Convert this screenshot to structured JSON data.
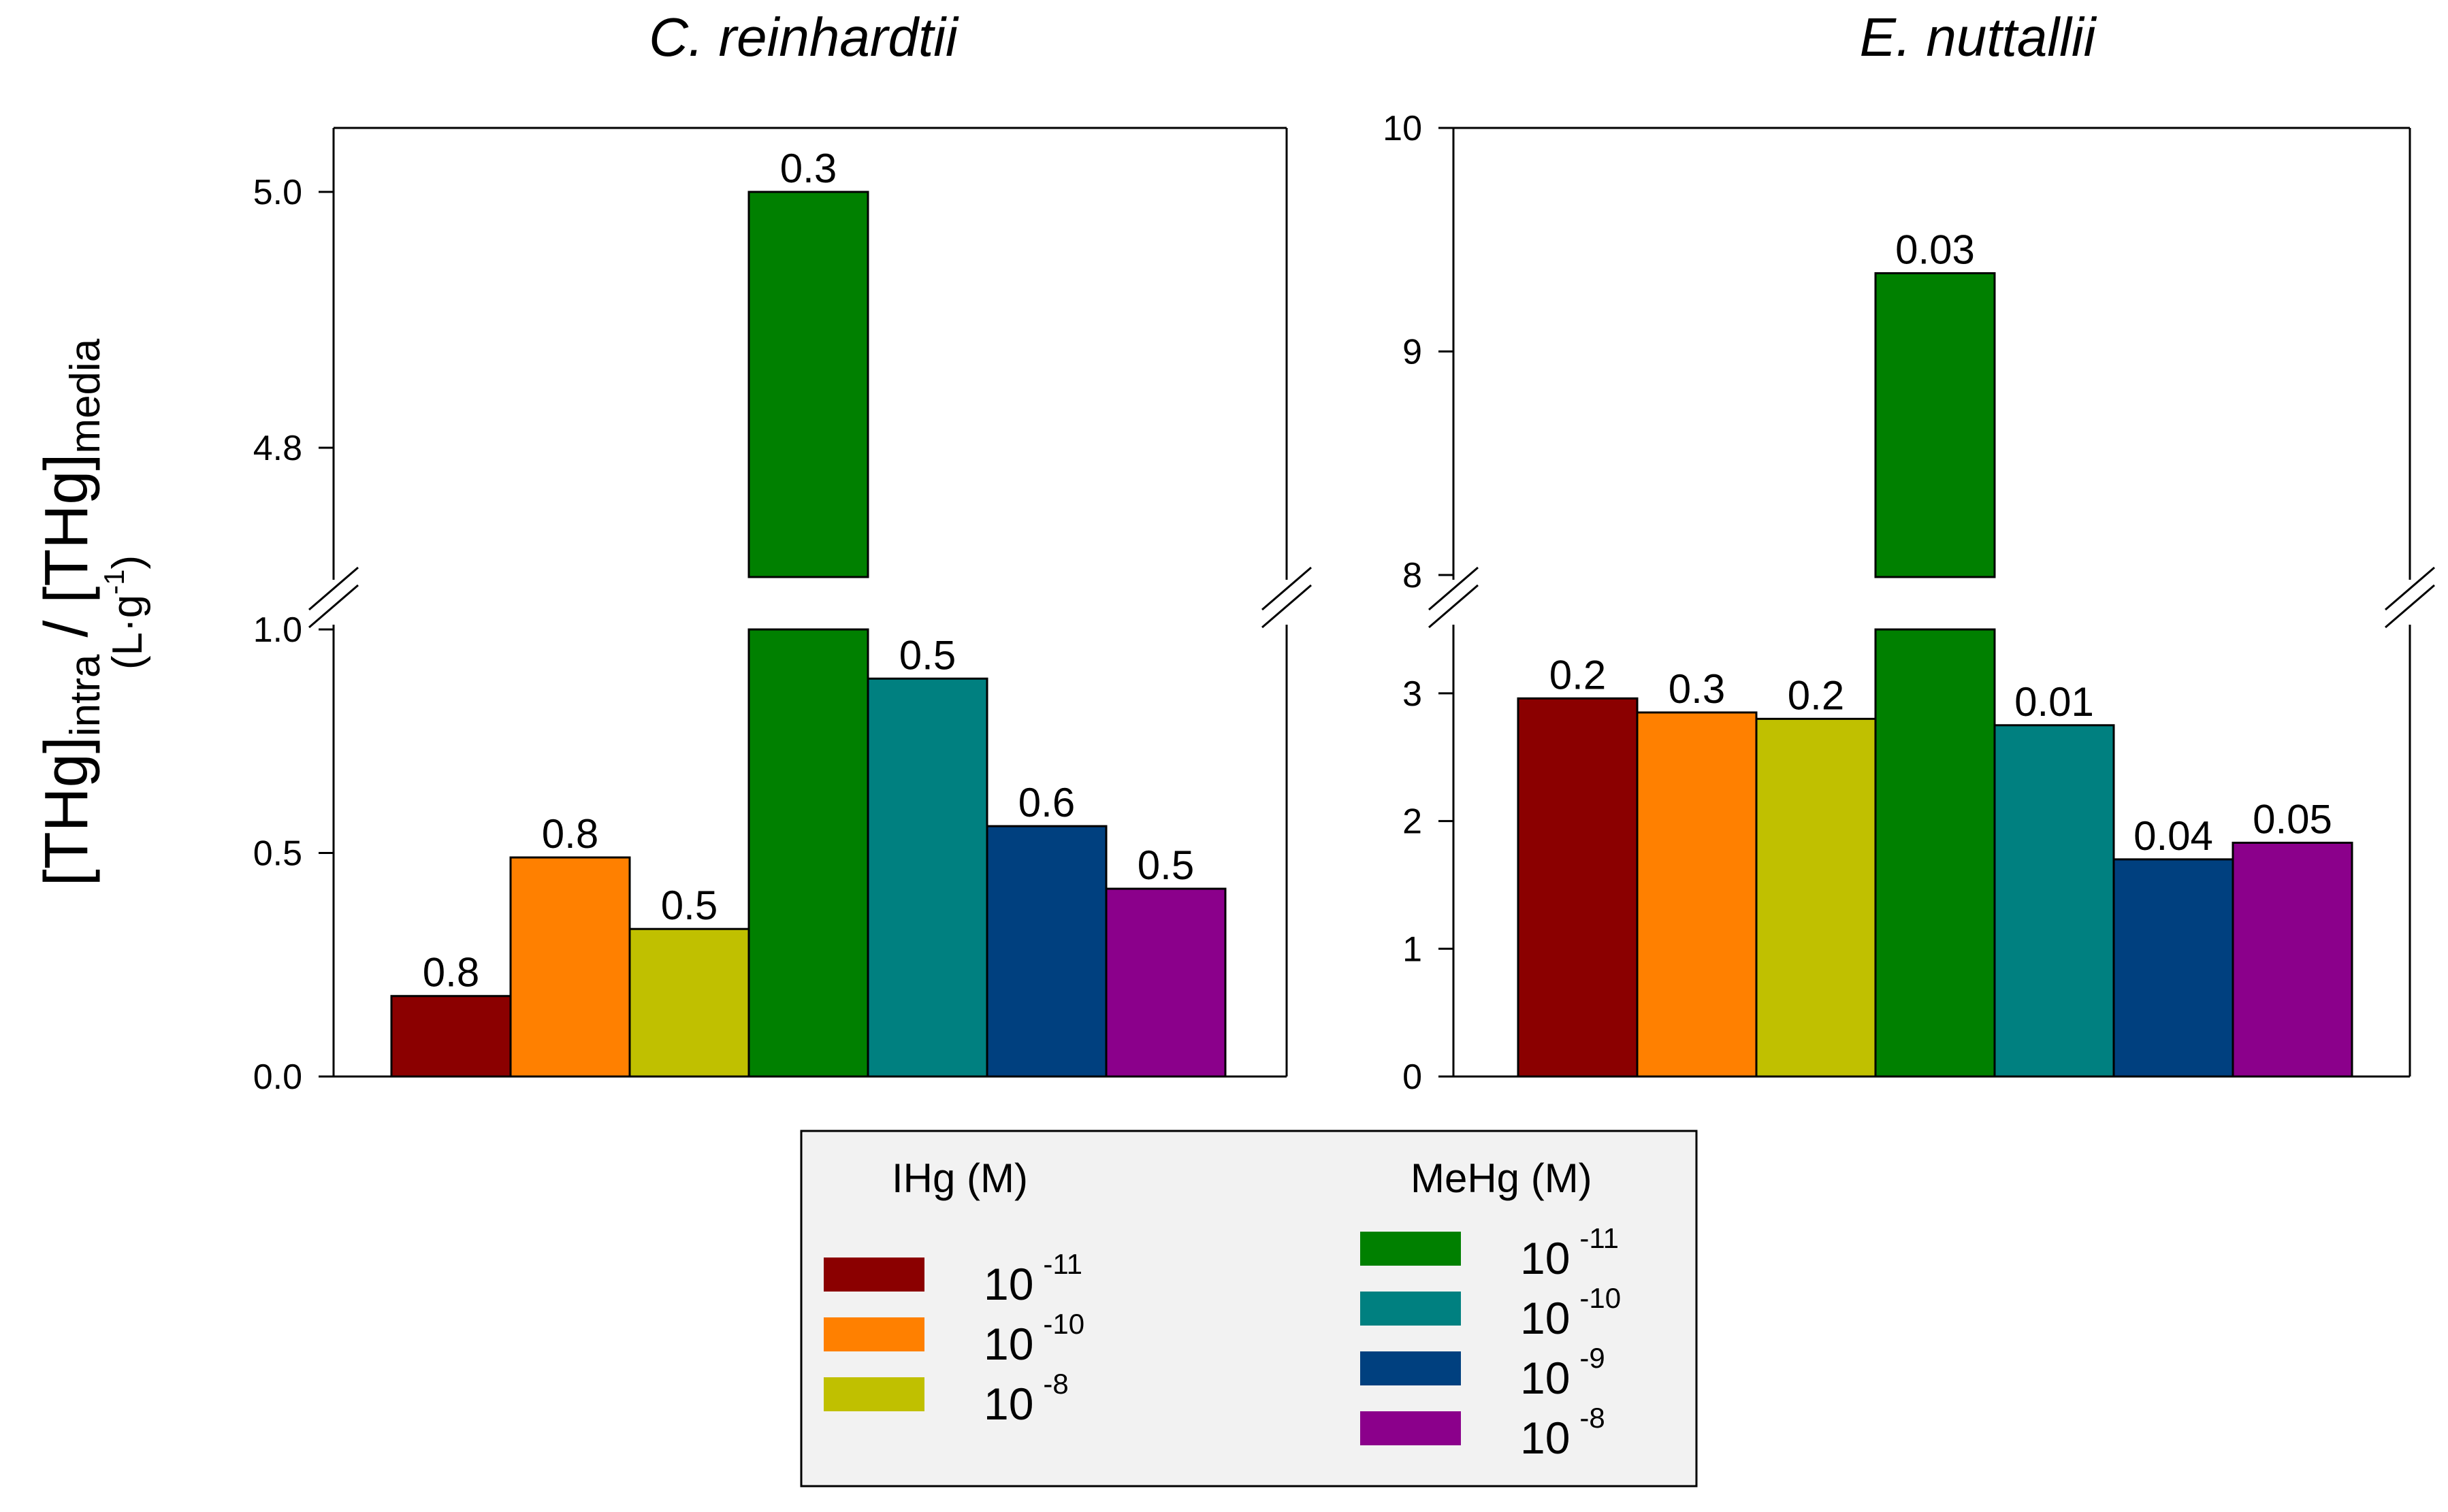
{
  "y_axis": {
    "main": "[THg]",
    "sub1": "intra",
    "sep": " / [THg]",
    "sub2": "media",
    "unit_left": "(L·g",
    "unit_sup": "-1",
    "unit_right": ")"
  },
  "legend": {
    "ihg_title": "IHg (M)",
    "mehg_title": "MeHg (M)",
    "ihg": [
      {
        "base": "10",
        "exp": "-11",
        "color": "#8b0000"
      },
      {
        "base": "10",
        "exp": "-10",
        "color": "#ff8000"
      },
      {
        "base": "10",
        "exp": "-8",
        "color": "#c0c000"
      }
    ],
    "mehg": [
      {
        "base": "10",
        "exp": "-11",
        "color": "#008000"
      },
      {
        "base": "10",
        "exp": "-10",
        "color": "#008080"
      },
      {
        "base": "10",
        "exp": "-9",
        "color": "#00407f"
      },
      {
        "base": "10",
        "exp": "-8",
        "color": "#8b008b"
      }
    ]
  },
  "chart_data": [
    {
      "type": "bar",
      "title": "C. reinhardtii",
      "categories": [
        "IHg 10-11",
        "IHg 10-10",
        "IHg 10-8",
        "MeHg 10-11",
        "MeHg 10-10",
        "MeHg 10-9",
        "MeHg 10-8"
      ],
      "values": [
        0.18,
        0.49,
        0.33,
        5.0,
        0.89,
        0.56,
        0.42
      ],
      "labels": [
        "0.8",
        "0.8",
        "0.5",
        "0.3",
        "0.5",
        "0.6",
        "0.5"
      ],
      "colors": [
        "#8b0000",
        "#ff8000",
        "#c0c000",
        "#008000",
        "#008080",
        "#00407f",
        "#8b008b"
      ],
      "axis_break": true,
      "lower_ylim": [
        0,
        1.0
      ],
      "lower_ticks": [
        "0.0",
        "0.5",
        "1.0"
      ],
      "lower_tick_values": [
        0,
        0.5,
        1.0
      ],
      "upper_ylim": [
        4.7,
        5.05
      ],
      "upper_ticks": [
        "4.8",
        "5.0"
      ],
      "upper_tick_values": [
        4.8,
        5.0
      ]
    },
    {
      "type": "bar",
      "title": "E. nuttallii",
      "categories": [
        "IHg 10-11",
        "IHg 10-10",
        "IHg 10-8",
        "MeHg 10-11",
        "MeHg 10-10",
        "MeHg 10-9",
        "MeHg 10-8"
      ],
      "values": [
        2.96,
        2.85,
        2.8,
        9.35,
        2.75,
        1.7,
        1.83
      ],
      "labels": [
        "0.2",
        "0.3",
        "0.2",
        "0.03",
        "0.01",
        "0.04",
        "0.05"
      ],
      "colors": [
        "#8b0000",
        "#ff8000",
        "#c0c000",
        "#008000",
        "#008080",
        "#00407f",
        "#8b008b"
      ],
      "axis_break": true,
      "lower_ylim": [
        0,
        3.5
      ],
      "lower_ticks": [
        "0",
        "1",
        "2",
        "3"
      ],
      "lower_tick_values": [
        0,
        1,
        2,
        3
      ],
      "upper_ylim": [
        8,
        10
      ],
      "upper_ticks": [
        "8",
        "9",
        "10"
      ],
      "upper_tick_values": [
        8,
        9,
        10
      ]
    }
  ]
}
